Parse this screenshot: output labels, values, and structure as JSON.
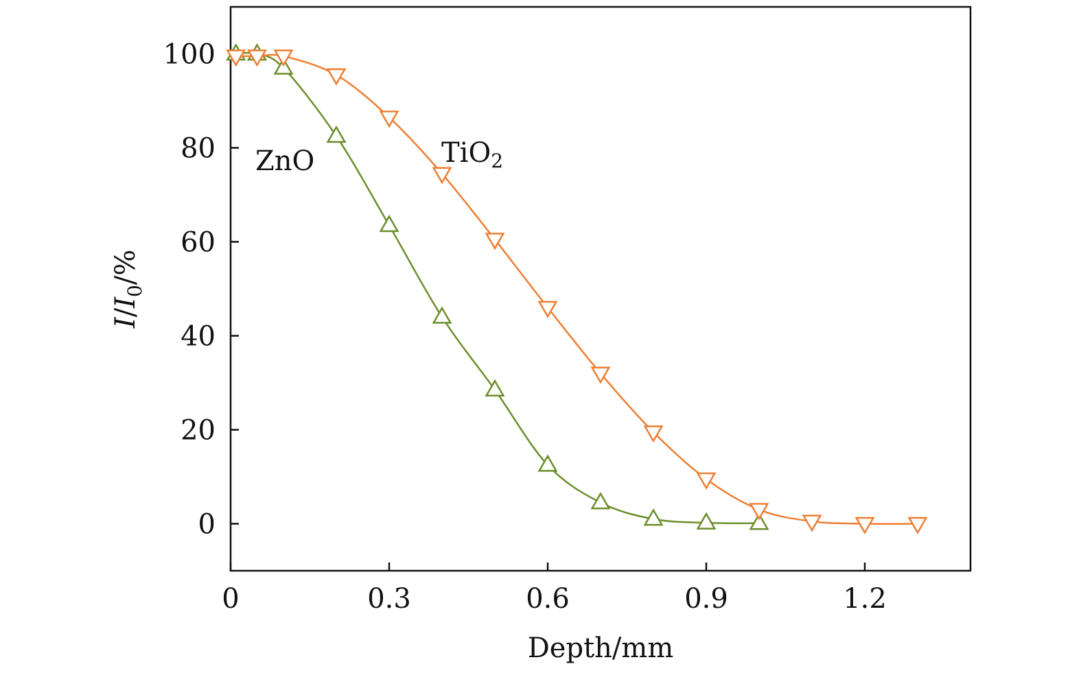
{
  "chart_data": {
    "type": "line",
    "title": "",
    "xlabel": "Depth/mm",
    "ylabel": {
      "I": "I",
      "slash1": "/",
      "I0_base": "I",
      "I0_sub": "0",
      "slash2": "/",
      "unit": "%"
    },
    "xlim": [
      0,
      1.4
    ],
    "ylim": [
      -10,
      110
    ],
    "x_ticks": [
      "0",
      "0.3",
      "0.6",
      "0.9",
      "1.2"
    ],
    "x_tick_values": [
      0,
      0.3,
      0.6,
      0.9,
      1.2
    ],
    "y_ticks": [
      "0",
      "20",
      "40",
      "60",
      "80",
      "100"
    ],
    "y_tick_values": [
      0,
      20,
      40,
      60,
      80,
      100
    ],
    "grid": false,
    "series": [
      {
        "name": "ZnO",
        "label": "ZnO",
        "color": "#6b8e2a",
        "marker": "triangle-up",
        "x": [
          0.01,
          0.05,
          0.1,
          0.2,
          0.3,
          0.4,
          0.5,
          0.6,
          0.7,
          0.8,
          0.9,
          1.0
        ],
        "y": [
          100,
          100,
          97,
          82.5,
          63.5,
          44,
          28.5,
          12.5,
          4.5,
          1,
          0.2,
          0.1
        ]
      },
      {
        "name": "TiO2",
        "label": {
          "base": "TiO",
          "sub": "2"
        },
        "color": "#ee7e32",
        "marker": "triangle-down",
        "x": [
          0.01,
          0.05,
          0.1,
          0.2,
          0.3,
          0.4,
          0.5,
          0.6,
          0.7,
          0.8,
          0.9,
          1.0,
          1.1,
          1.2,
          1.3
        ],
        "y": [
          99.5,
          99.5,
          99.5,
          95.5,
          86.5,
          74.5,
          60.5,
          46,
          32,
          19.5,
          9.5,
          3,
          0.5,
          0,
          0
        ]
      }
    ]
  }
}
